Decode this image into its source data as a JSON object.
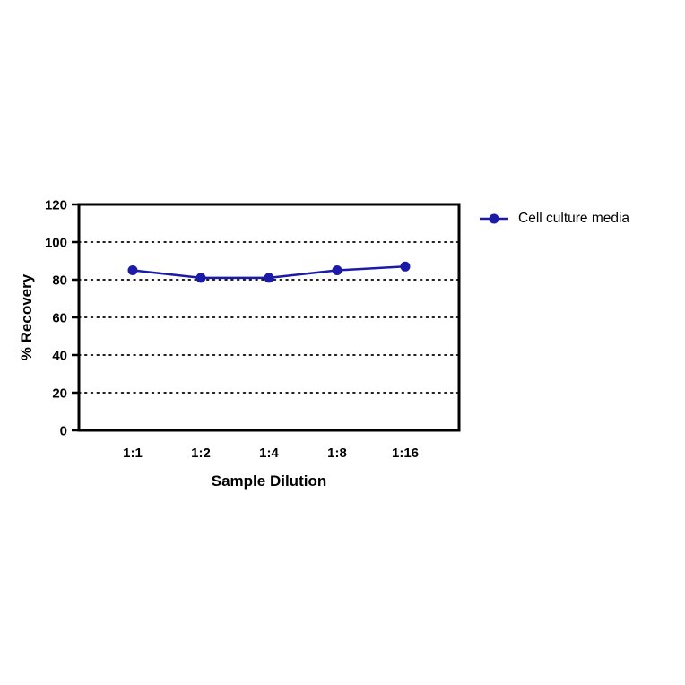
{
  "chart_data": {
    "type": "line",
    "title": "",
    "xlabel": "Sample Dilution",
    "ylabel": "% Recovery",
    "categories": [
      "1:1",
      "1:2",
      "1:4",
      "1:8",
      "1:16"
    ],
    "series": [
      {
        "name": "Cell culture media",
        "values": [
          85,
          81,
          81,
          85,
          87
        ],
        "color": "#1b1ba8",
        "marker": "filled-circle"
      }
    ],
    "ylim": [
      0,
      120
    ],
    "yticks": [
      0,
      20,
      40,
      60,
      80,
      100,
      120
    ],
    "gridline_values": [
      20,
      40,
      60,
      80,
      100
    ],
    "grid_style": "dotted",
    "frame": "full-box",
    "axis_color": "#000000",
    "legend_position": "top-right-outside"
  }
}
